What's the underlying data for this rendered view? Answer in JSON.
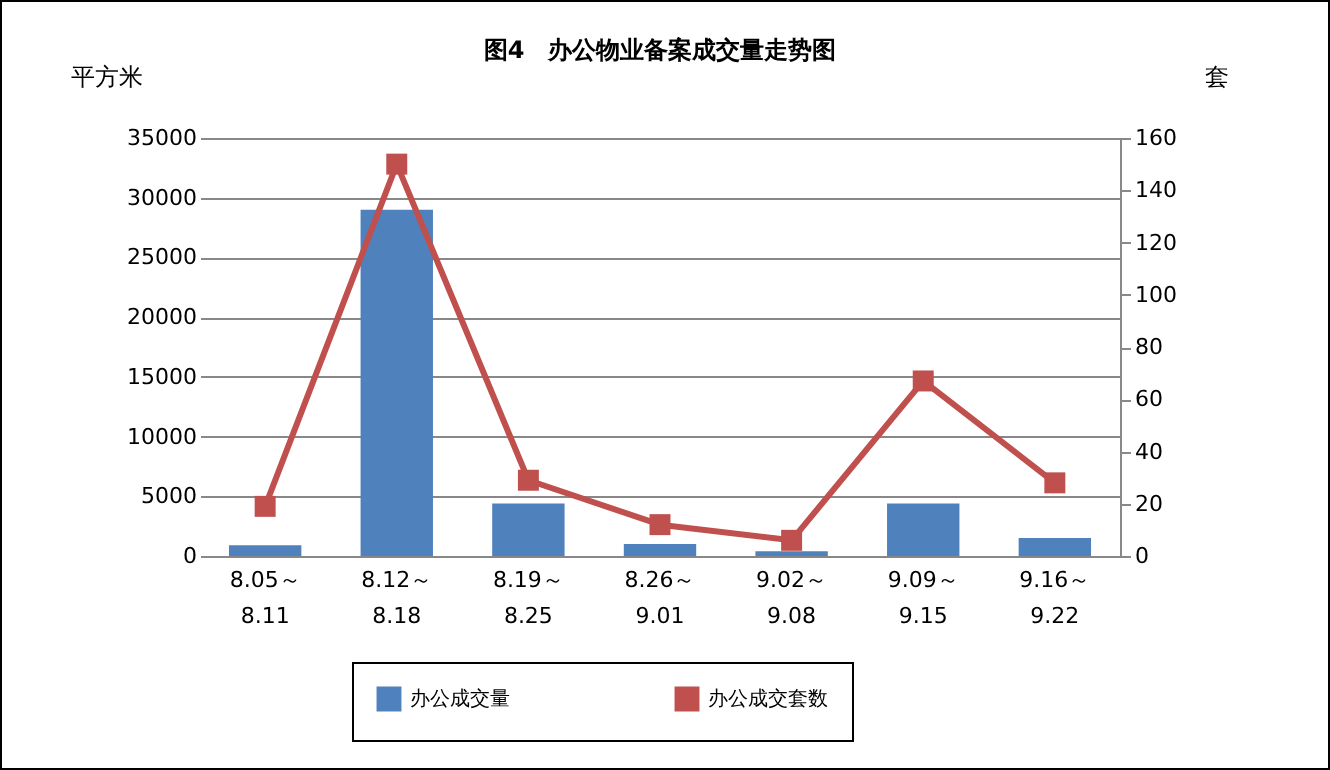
{
  "chart_data": {
    "type": "bar",
    "title": "图4　办公物业备案成交量走势图",
    "ylabel": "平方米",
    "y2label": "套",
    "categories": [
      "8.05～8.11",
      "8.12～8.18",
      "8.19～8.25",
      "8.26～9.01",
      "9.02～9.08",
      "9.09～9.15",
      "9.16～9.22"
    ],
    "series": [
      {
        "name": "办公成交量",
        "color": "#4f81bd",
        "values": [
          900,
          29000,
          4400,
          1000,
          400,
          4400,
          1500
        ]
      },
      {
        "name": "办公成交套数",
        "type": "line",
        "axis": "y2",
        "color": "#c0504d",
        "marker": "square",
        "values": [
          19,
          150,
          29,
          12,
          6,
          67,
          28
        ]
      }
    ],
    "ylim": [
      0,
      35000
    ],
    "yticks": [
      0,
      5000,
      10000,
      15000,
      20000,
      25000,
      30000,
      35000
    ],
    "y2lim": [
      0,
      160
    ],
    "y2ticks": [
      0,
      20,
      40,
      60,
      80,
      100,
      120,
      140,
      160
    ],
    "grid": "y",
    "legend": "bottom"
  }
}
